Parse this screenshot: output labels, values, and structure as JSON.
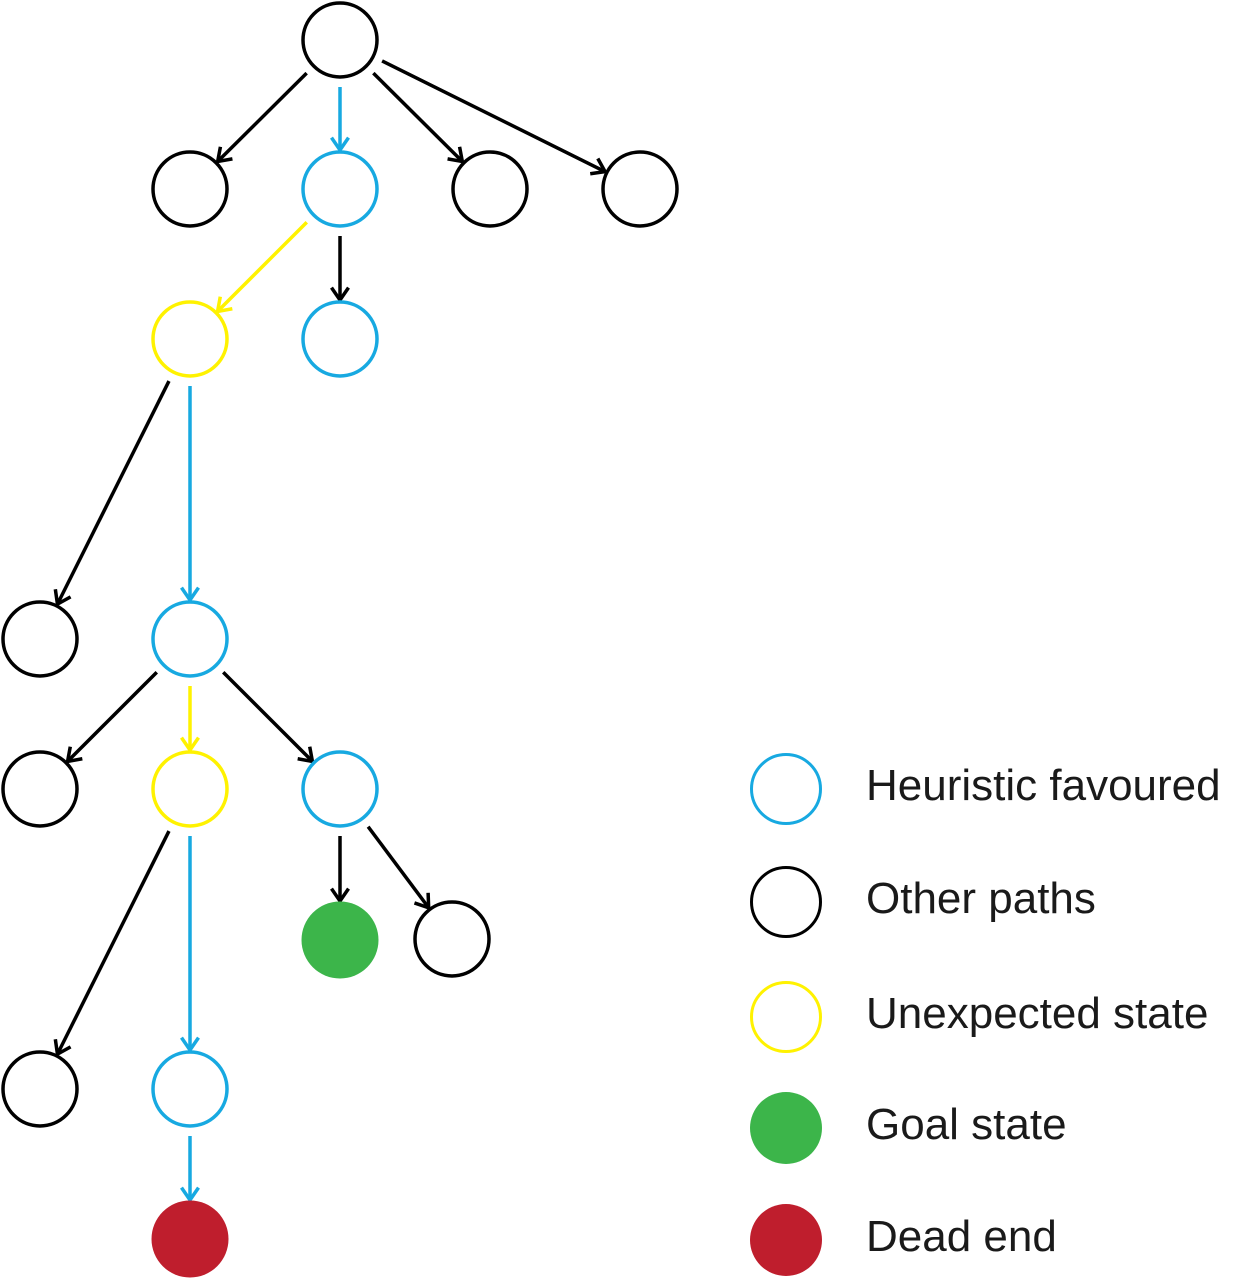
{
  "colors": {
    "heuristic": "#17a9e1",
    "other": "#000000",
    "unexpected": "#fff200",
    "goal": "#3cb54a",
    "dead_end": "#bf1e2d"
  },
  "diagram": {
    "nodes": [
      {
        "id": "root",
        "kind": "other"
      },
      {
        "id": "l1a",
        "kind": "other"
      },
      {
        "id": "l1b",
        "kind": "heuristic"
      },
      {
        "id": "l1c",
        "kind": "other"
      },
      {
        "id": "l1d",
        "kind": "other"
      },
      {
        "id": "l2a",
        "kind": "unexpected"
      },
      {
        "id": "l2b",
        "kind": "heuristic"
      },
      {
        "id": "l3a",
        "kind": "other"
      },
      {
        "id": "l3b",
        "kind": "heuristic"
      },
      {
        "id": "l4a",
        "kind": "other"
      },
      {
        "id": "l4b",
        "kind": "unexpected"
      },
      {
        "id": "l4c",
        "kind": "heuristic"
      },
      {
        "id": "l5a",
        "kind": "goal"
      },
      {
        "id": "l5b",
        "kind": "other"
      },
      {
        "id": "l6a",
        "kind": "other"
      },
      {
        "id": "l6b",
        "kind": "heuristic"
      },
      {
        "id": "l7",
        "kind": "dead_end"
      }
    ],
    "edges": [
      {
        "from": "root",
        "to": "l1a",
        "kind": "other"
      },
      {
        "from": "root",
        "to": "l1b",
        "kind": "heuristic"
      },
      {
        "from": "root",
        "to": "l1c",
        "kind": "other"
      },
      {
        "from": "root",
        "to": "l1d",
        "kind": "other"
      },
      {
        "from": "l1b",
        "to": "l2a",
        "kind": "unexpected"
      },
      {
        "from": "l1b",
        "to": "l2b",
        "kind": "other"
      },
      {
        "from": "l2a",
        "to": "l3a",
        "kind": "other"
      },
      {
        "from": "l2a",
        "to": "l3b",
        "kind": "heuristic"
      },
      {
        "from": "l3b",
        "to": "l4a",
        "kind": "other"
      },
      {
        "from": "l3b",
        "to": "l4b",
        "kind": "unexpected"
      },
      {
        "from": "l3b",
        "to": "l4c",
        "kind": "other"
      },
      {
        "from": "l4c",
        "to": "l5a",
        "kind": "other"
      },
      {
        "from": "l4c",
        "to": "l5b",
        "kind": "other"
      },
      {
        "from": "l4b",
        "to": "l6a",
        "kind": "other"
      },
      {
        "from": "l4b",
        "to": "l6b",
        "kind": "heuristic"
      },
      {
        "from": "l6b",
        "to": "l7",
        "kind": "heuristic"
      }
    ]
  },
  "legend": {
    "items": [
      {
        "key": "heuristic",
        "label": "Heuristic favoured",
        "style": "outline"
      },
      {
        "key": "other",
        "label": "Other paths",
        "style": "outline"
      },
      {
        "key": "unexpected",
        "label": "Unexpected state",
        "style": "outline"
      },
      {
        "key": "goal",
        "label": "Goal state",
        "style": "filled"
      },
      {
        "key": "dead_end",
        "label": "Dead end",
        "style": "filled"
      }
    ]
  }
}
